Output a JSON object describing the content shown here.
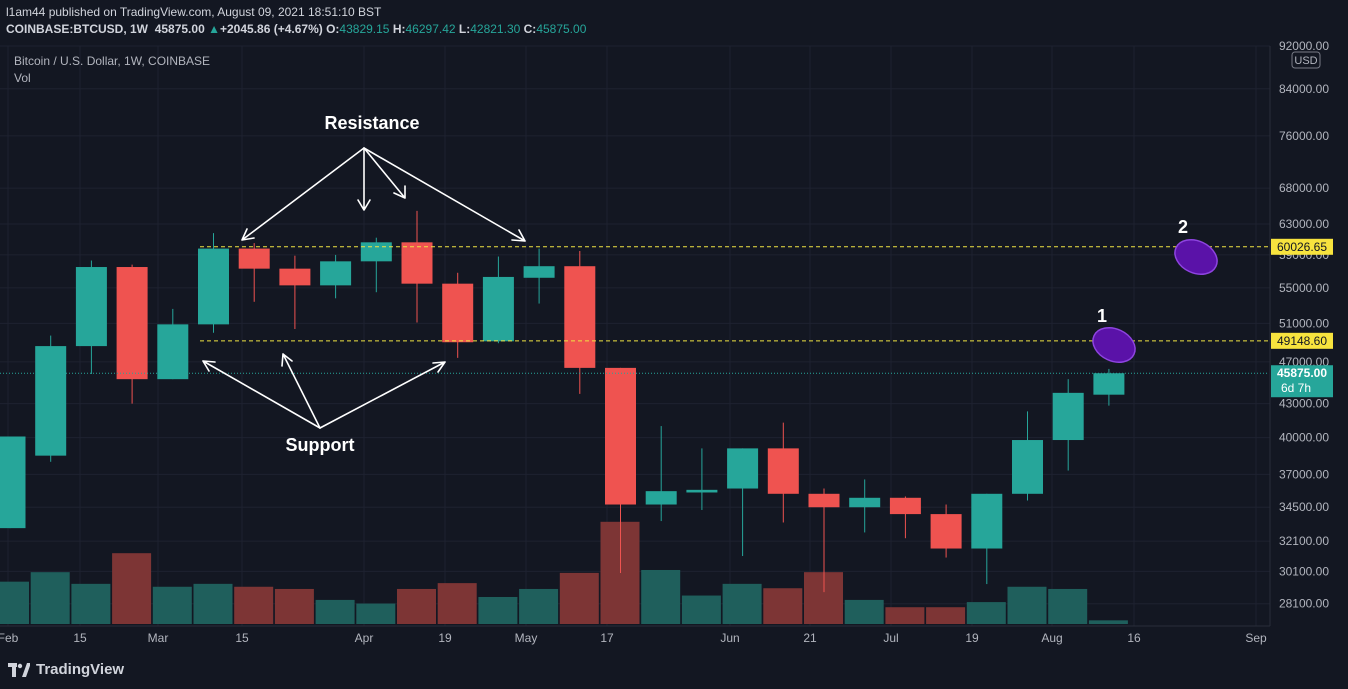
{
  "header": {
    "publisher": "l1am44 published on TradingView.com, August 09, 2021 18:51:10 BST",
    "symbol": "COINBASE:BTCUSD, 1W",
    "last": "45875.00",
    "change": "+2045.86 (+4.67%)",
    "o_label": "O:",
    "o": "43829.15",
    "h_label": "H:",
    "h": "46297.42",
    "l_label": "L:",
    "l": "42821.30",
    "c_label": "C:",
    "c": "45875.00"
  },
  "legend": {
    "title": "Bitcoin / U.S. Dollar, 1W, COINBASE",
    "vol": "Vol"
  },
  "currency": "USD",
  "brand": "TradingView",
  "colors": {
    "background": "#131722",
    "up": "#26a69a",
    "down": "#ef5350",
    "vol_up": "#1f5f5c",
    "vol_down": "#7d3535",
    "level_line": "#f0e442",
    "marker": "#6a1fb0",
    "annotation": "#ffffff"
  },
  "chart_data": {
    "type": "candlestick",
    "title": "Bitcoin / U.S. Dollar, 1W, COINBASE",
    "y_scale": "log",
    "ylim": [
      26800,
      92000
    ],
    "y_ticks": [
      "92000.00",
      "84000.00",
      "76000.00",
      "68000.00",
      "63000.00",
      "59000.00",
      "55000.00",
      "51000.00",
      "47000.00",
      "43000.00",
      "40000.00",
      "37000.00",
      "34500.00",
      "32100.00",
      "30100.00",
      "28100.00"
    ],
    "x_ticks": [
      "Feb",
      "15",
      "Mar",
      "15",
      "Apr",
      "19",
      "May",
      "17",
      "Jun",
      "21",
      "Jul",
      "19",
      "Aug",
      "16",
      "Sep"
    ],
    "candles": [
      {
        "o": 33000,
        "h": 40100,
        "l": 33000,
        "c": 40100
      },
      {
        "o": 38500,
        "h": 49700,
        "l": 38000,
        "c": 48600
      },
      {
        "o": 48600,
        "h": 58300,
        "l": 45800,
        "c": 57500
      },
      {
        "o": 57500,
        "h": 57800,
        "l": 43000,
        "c": 45300
      },
      {
        "o": 45300,
        "h": 52600,
        "l": 45300,
        "c": 50900
      },
      {
        "o": 50900,
        "h": 61800,
        "l": 50000,
        "c": 59800
      },
      {
        "o": 59800,
        "h": 60500,
        "l": 53400,
        "c": 57300
      },
      {
        "o": 57300,
        "h": 58900,
        "l": 50400,
        "c": 55300
      },
      {
        "o": 55300,
        "h": 59000,
        "l": 53800,
        "c": 58200
      },
      {
        "o": 58200,
        "h": 61200,
        "l": 54500,
        "c": 60600
      },
      {
        "o": 60600,
        "h": 64800,
        "l": 51100,
        "c": 55500
      },
      {
        "o": 55500,
        "h": 56800,
        "l": 47400,
        "c": 49000
      },
      {
        "o": 49100,
        "h": 58800,
        "l": 48900,
        "c": 56300
      },
      {
        "o": 56200,
        "h": 59800,
        "l": 53200,
        "c": 57600
      },
      {
        "o": 57600,
        "h": 59500,
        "l": 43900,
        "c": 46400
      },
      {
        "o": 46400,
        "h": 46400,
        "l": 30000,
        "c": 34700
      },
      {
        "o": 34700,
        "h": 41000,
        "l": 33500,
        "c": 35700
      },
      {
        "o": 35600,
        "h": 39100,
        "l": 34300,
        "c": 35800
      },
      {
        "o": 35900,
        "h": 39100,
        "l": 31100,
        "c": 39100
      },
      {
        "o": 39100,
        "h": 41300,
        "l": 33400,
        "c": 35500
      },
      {
        "o": 35500,
        "h": 35900,
        "l": 28800,
        "c": 34500
      },
      {
        "o": 34500,
        "h": 36600,
        "l": 32700,
        "c": 35200
      },
      {
        "o": 35200,
        "h": 35300,
        "l": 32300,
        "c": 34000
      },
      {
        "o": 34000,
        "h": 34700,
        "l": 31000,
        "c": 31600
      },
      {
        "o": 31600,
        "h": 35500,
        "l": 29300,
        "c": 35500
      },
      {
        "o": 35500,
        "h": 42300,
        "l": 35000,
        "c": 39800
      },
      {
        "o": 39800,
        "h": 45300,
        "l": 37300,
        "c": 44000
      },
      {
        "o": 43829.15,
        "h": 46297.42,
        "l": 42821.3,
        "c": 45875
      }
    ],
    "volume_relative": [
      0.58,
      0.71,
      0.55,
      0.97,
      0.51,
      0.55,
      0.51,
      0.48,
      0.33,
      0.28,
      0.48,
      0.56,
      0.37,
      0.48,
      0.7,
      1.4,
      0.74,
      0.39,
      0.55,
      0.49,
      0.71,
      0.33,
      0.23,
      0.23,
      0.3,
      0.51,
      0.48,
      0.05
    ],
    "levels": [
      {
        "value": 60026.65,
        "label": "60026.65"
      },
      {
        "value": 49148.6,
        "label": "49148.60"
      }
    ],
    "last_price_label": "45875.00",
    "countdown_label": "6d 7h",
    "annotations": {
      "resistance": "Resistance",
      "support": "Support",
      "marker1": "1",
      "marker2": "2"
    }
  }
}
